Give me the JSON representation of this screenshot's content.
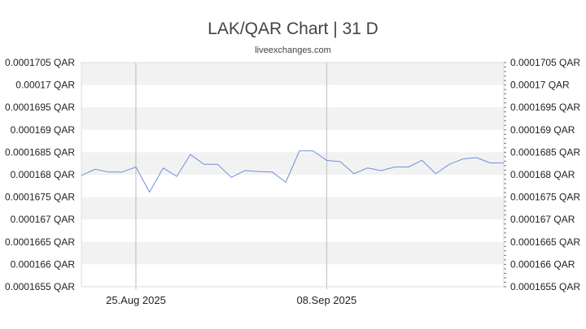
{
  "header": {
    "title": "LAK/QAR Chart | 31 D",
    "subtitle": "liveexchanges.com"
  },
  "chart_data": {
    "type": "line",
    "title": "LAK/QAR Chart | 31 D",
    "xlabel": "",
    "ylabel": "",
    "ylim": [
      0.0001655,
      0.0001705
    ],
    "grid": true,
    "y_ticks": [
      "0.0001705 QAR",
      "0.00017 QAR",
      "0.0001695 QAR",
      "0.000169 QAR",
      "0.0001685 QAR",
      "0.000168 QAR",
      "0.0001675 QAR",
      "0.000167 QAR",
      "0.0001665 QAR",
      "0.000166 QAR",
      "0.0001655 QAR"
    ],
    "y_tick_values": [
      0.0001705,
      0.00017,
      0.0001695,
      0.000169,
      0.0001685,
      0.000168,
      0.0001675,
      0.000167,
      0.0001665,
      0.000166,
      0.0001655
    ],
    "x_ticks": [
      {
        "label": "25.Aug 2025",
        "day": 4
      },
      {
        "label": "08.Sep 2025",
        "day": 18
      }
    ],
    "x_range": [
      0,
      31
    ],
    "line_color": "#6f8fdc",
    "series": [
      {
        "values": [
          0.00016798,
          0.00016812,
          0.00016806,
          0.00016806,
          0.00016817,
          0.00016761,
          0.00016815,
          0.00016796,
          0.00016845,
          0.00016823,
          0.00016823,
          0.00016794,
          0.00016809,
          0.00016807,
          0.00016806,
          0.00016783,
          0.00016853,
          0.00016853,
          0.00016832,
          0.00016829,
          0.00016802,
          0.00016815,
          0.00016809,
          0.00016817,
          0.00016817,
          0.00016832,
          0.00016802,
          0.00016823,
          0.00016835,
          0.00016838,
          0.00016826,
          0.00016826
        ]
      }
    ]
  }
}
